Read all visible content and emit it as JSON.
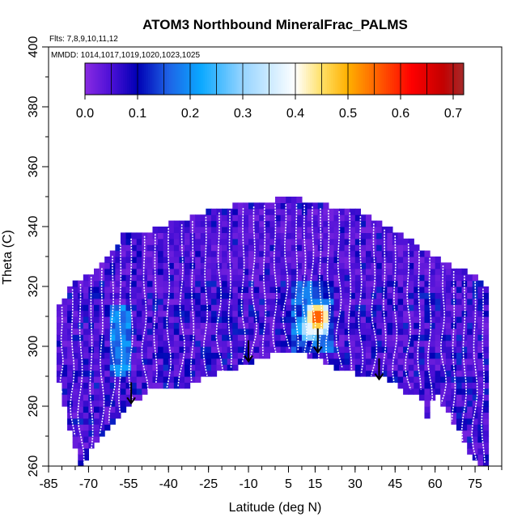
{
  "chart_data": {
    "type": "heatmap",
    "title": "ATOM3 Northbound MineralFrac_PALMS",
    "subtitle_flights": "Flts: 7,8,9,10,11,12",
    "subtitle_dates": "MMDD: 1014,1017,1019,1020,1023,1025",
    "xlabel": "Latitude (deg N)",
    "ylabel": "Theta (C)",
    "xlim": [
      -85,
      85
    ],
    "ylim": [
      260,
      400
    ],
    "x_ticks": [
      -85,
      -70,
      -55,
      -40,
      -25,
      -10,
      5,
      15,
      30,
      45,
      60,
      75
    ],
    "y_ticks": [
      260,
      280,
      300,
      320,
      340,
      360,
      380,
      400
    ],
    "colorbar": {
      "range": [
        0,
        0.72
      ],
      "ticks": [
        0.0,
        0.1,
        0.2,
        0.3,
        0.4,
        0.5,
        0.6,
        0.7
      ],
      "tick_labels": [
        "0.0",
        "0.1",
        "0.2",
        "0.3",
        "0.4",
        "0.5",
        "0.6",
        "0.7"
      ],
      "stops": [
        {
          "v": 0.0,
          "c": "#8a2be2"
        },
        {
          "v": 0.05,
          "c": "#4b10d6"
        },
        {
          "v": 0.1,
          "c": "#0000b4"
        },
        {
          "v": 0.16,
          "c": "#1e64e6"
        },
        {
          "v": 0.22,
          "c": "#0aa8ff"
        },
        {
          "v": 0.3,
          "c": "#96d4ff"
        },
        {
          "v": 0.4,
          "c": "#ffffff"
        },
        {
          "v": 0.45,
          "c": "#ffe066"
        },
        {
          "v": 0.5,
          "c": "#ffb000"
        },
        {
          "v": 0.56,
          "c": "#ff5a00"
        },
        {
          "v": 0.62,
          "c": "#ff0000"
        },
        {
          "v": 0.68,
          "c": "#c40000"
        },
        {
          "v": 0.72,
          "c": "#a52a2a"
        }
      ]
    },
    "data_envelope_top": [
      [
        -81,
        313
      ],
      [
        -77,
        320
      ],
      [
        -70,
        324
      ],
      [
        -63,
        329
      ],
      [
        -57,
        337
      ],
      [
        -45,
        339
      ],
      [
        -40,
        341
      ],
      [
        -32,
        343
      ],
      [
        -22,
        346
      ],
      [
        -10,
        348
      ],
      [
        0,
        349
      ],
      [
        10,
        349
      ],
      [
        20,
        347
      ],
      [
        30,
        346
      ],
      [
        40,
        341
      ],
      [
        48,
        337
      ],
      [
        58,
        331
      ],
      [
        66,
        327
      ],
      [
        74,
        324
      ],
      [
        79,
        320
      ]
    ],
    "data_envelope_bottom": [
      [
        -81,
        288
      ],
      [
        -78,
        276
      ],
      [
        -73,
        260
      ],
      [
        -67,
        268
      ],
      [
        -62,
        273
      ],
      [
        -55,
        280
      ],
      [
        -45,
        287
      ],
      [
        -38,
        285
      ],
      [
        -25,
        290
      ],
      [
        -15,
        293
      ],
      [
        -5,
        296
      ],
      [
        5,
        299
      ],
      [
        13,
        297
      ],
      [
        22,
        293
      ],
      [
        33,
        290
      ],
      [
        43,
        289
      ],
      [
        48,
        285
      ],
      [
        54,
        285
      ],
      [
        57,
        276
      ],
      [
        60,
        285
      ],
      [
        68,
        273
      ],
      [
        74,
        262
      ],
      [
        79,
        260
      ]
    ],
    "descent_profiles_lat": [
      -80,
      -76,
      -73,
      -69,
      -65,
      -61,
      -58,
      -54,
      -49,
      -45,
      -40,
      -35,
      -31,
      -26,
      -21,
      -17,
      -12,
      -8,
      -4,
      0,
      4,
      8,
      11,
      14,
      17,
      20,
      24,
      28,
      32,
      37,
      41,
      45,
      50,
      54,
      58,
      63,
      67,
      71,
      75,
      78
    ],
    "arrows": [
      {
        "lat": -54,
        "theta_top": 288,
        "theta_tip": 281
      },
      {
        "lat": -10,
        "theta_top": 302,
        "theta_tip": 295
      },
      {
        "lat": 16,
        "theta_top": 306,
        "theta_tip": 298
      },
      {
        "lat": 39,
        "theta_top": 296,
        "theta_tip": 289
      }
    ],
    "hotspots": [
      {
        "lat": 13,
        "theta": 306,
        "value": 0.42,
        "note": "white/yellow core"
      },
      {
        "lat": 16,
        "theta": 308,
        "value": 0.55,
        "note": "orange"
      },
      {
        "lat": 16,
        "theta": 310,
        "value": 0.65,
        "note": "red"
      },
      {
        "lat": 14,
        "theta": 312,
        "value": 0.28,
        "note": "light blue"
      },
      {
        "lat": 12,
        "theta": 318,
        "value": 0.22,
        "note": "cyan"
      },
      {
        "lat": -58,
        "theta": 298,
        "value": 0.22,
        "note": "cyan patch"
      },
      {
        "lat": -58,
        "theta": 304,
        "value": 0.2,
        "note": "blue patch"
      }
    ]
  }
}
